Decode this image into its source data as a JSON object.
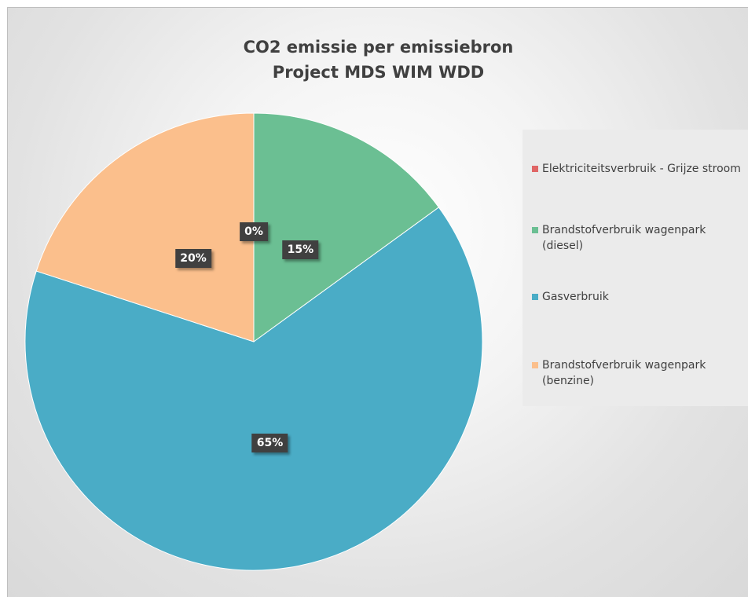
{
  "chart_data": {
    "type": "pie",
    "title": "CO2 emissie per emissiebron",
    "subtitle": "Project MDS WIM WDD",
    "slices": [
      {
        "label": "Elektriciteitsverbruik - Grijze stroom",
        "value": 0,
        "data_label": "0%",
        "color": "#e06666"
      },
      {
        "label": "Brandstofverbruik wagenpark\n(diesel)",
        "value": 15,
        "data_label": "15%",
        "color": "#6bbf93"
      },
      {
        "label": "Gasverbruik",
        "value": 65,
        "data_label": "65%",
        "color": "#4aacc6"
      },
      {
        "label": "Brandstofverbruik wagenpark\n(benzine)",
        "value": 20,
        "data_label": "20%",
        "color": "#fbbf8c"
      }
    ],
    "legend_position": "right",
    "start_angle_deg": 0,
    "direction": "clockwise"
  }
}
